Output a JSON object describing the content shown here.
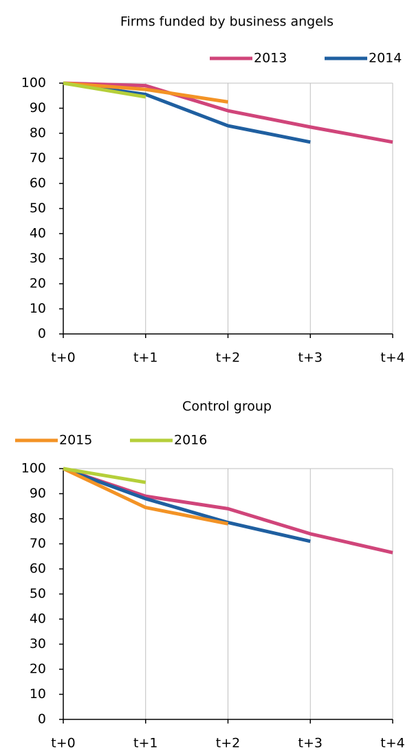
{
  "chart_data": [
    {
      "type": "line",
      "title": "Firms funded by business angels",
      "categories": [
        "t+0",
        "t+1",
        "t+2",
        "t+3",
        "t+4"
      ],
      "series": [
        {
          "name": "2013",
          "color": "#d0457a",
          "values": [
            100,
            99,
            89,
            82.5,
            76.5
          ]
        },
        {
          "name": "2014",
          "color": "#1f5fa0",
          "values": [
            100,
            95.5,
            83,
            76.5,
            null
          ]
        },
        {
          "color": "#f39325",
          "values": [
            100,
            97.5,
            92.5,
            null,
            null
          ]
        },
        {
          "color": "#b5cf3a",
          "values": [
            100,
            94.5,
            null,
            null,
            null
          ]
        }
      ],
      "ylim": [
        0,
        100
      ],
      "yticks": [
        0,
        10,
        20,
        30,
        40,
        50,
        60,
        70,
        80,
        90,
        100
      ],
      "grid": "x",
      "legend": "top-right"
    },
    {
      "type": "line",
      "title": "Control group",
      "categories": [
        "t+0",
        "t+1",
        "t+2",
        "t+3",
        "t+4"
      ],
      "series": [
        {
          "color": "#d0457a",
          "values": [
            100,
            89,
            84,
            74,
            66.5
          ]
        },
        {
          "color": "#1f5fa0",
          "values": [
            100,
            88,
            78.5,
            71,
            null
          ]
        },
        {
          "name": "2015",
          "color": "#f39325",
          "values": [
            100,
            84.5,
            78,
            null,
            null
          ]
        },
        {
          "name": "2016",
          "color": "#b5cf3a",
          "values": [
            100,
            94.5,
            null,
            null,
            null
          ]
        }
      ],
      "ylim": [
        0,
        100
      ],
      "yticks": [
        0,
        10,
        20,
        30,
        40,
        50,
        60,
        70,
        80,
        90,
        100
      ],
      "grid": "x",
      "legend": "top-left"
    }
  ]
}
